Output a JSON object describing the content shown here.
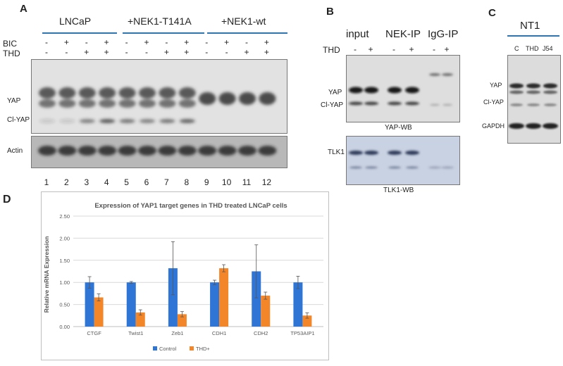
{
  "panelA": {
    "letter": "A",
    "groups": [
      "LNCaP",
      "+NEK1-T141A",
      "+NEK1-wt"
    ],
    "row_labels": {
      "bic": "BIC",
      "thd": "THD"
    },
    "bic": [
      "-",
      "+",
      "-",
      "+",
      "-",
      "+",
      "-",
      "+",
      "-",
      "+",
      "-",
      "+"
    ],
    "thd": [
      "-",
      "-",
      "+",
      "+",
      "-",
      "-",
      "+",
      "+",
      "-",
      "-",
      "+",
      "+"
    ],
    "blot_labels": {
      "yap": "YAP",
      "clyap": "Cl-YAP",
      "actin": "Actin"
    },
    "lanes": [
      "1",
      "2",
      "3",
      "4",
      "5",
      "6",
      "7",
      "8",
      "9",
      "10",
      "11",
      "12"
    ],
    "clyap_intensity": [
      0.15,
      0.15,
      0.55,
      0.75,
      0.6,
      0.55,
      0.6,
      0.7,
      0,
      0,
      0,
      0
    ]
  },
  "panelB": {
    "letter": "B",
    "groups": [
      "input",
      "NEK-IP",
      "IgG-IP"
    ],
    "row_label": "THD",
    "thd": [
      "-",
      "+",
      "-",
      "+",
      "-",
      "+"
    ],
    "blot_labels": {
      "yap": "YAP",
      "clyap": "Cl-YAP",
      "tlk1": "TLK1"
    },
    "captions": {
      "yap_wb": "YAP-WB",
      "tlk1_wb": "TLK1-WB"
    }
  },
  "panelC": {
    "letter": "C",
    "group": "NT1",
    "lanes": [
      "C",
      "THD",
      "J54"
    ],
    "blot_labels": {
      "yap": "YAP",
      "clyap": "Cl-YAP",
      "gapdh": "GAPDH"
    }
  },
  "panelD": {
    "letter": "D",
    "chart_data": {
      "type": "bar",
      "title": "Expression of YAP1 target genes in THD treated LNCaP cells",
      "ylabel": "Relative mRNA Expression",
      "xlabel": "",
      "ylim": [
        0,
        2.5
      ],
      "yticks": [
        "0.00",
        "0.50",
        "1.00",
        "1.50",
        "2.00",
        "2.50"
      ],
      "categories": [
        "CTGF",
        "Twist1",
        "Zeb1",
        "CDH1",
        "CDH2",
        "TP53AIP1"
      ],
      "series": [
        {
          "name": "Control",
          "color": "#2e75d6",
          "values": [
            1.0,
            1.0,
            1.32,
            1.0,
            1.25,
            1.0
          ],
          "errors": [
            0.13,
            0.02,
            0.6,
            0.05,
            0.6,
            0.14
          ]
        },
        {
          "name": "THD+",
          "color": "#f4862a",
          "values": [
            0.66,
            0.32,
            0.28,
            1.32,
            0.7,
            0.25
          ],
          "errors": [
            0.08,
            0.06,
            0.06,
            0.08,
            0.08,
            0.06
          ]
        }
      ],
      "legend": "bottom",
      "grid": true
    }
  }
}
